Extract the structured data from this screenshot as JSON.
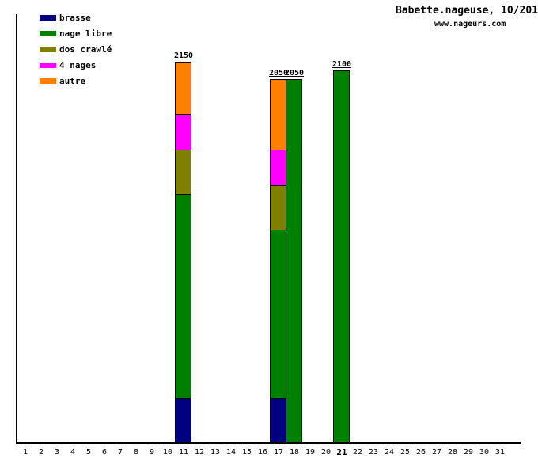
{
  "header": {
    "title": "Babette.nageuse, 10/201",
    "site": "www.nageurs.com"
  },
  "legend": {
    "position": "top-left",
    "items": [
      {
        "label": "brasse",
        "color": "#000080"
      },
      {
        "label": "nage libre",
        "color": "#008000"
      },
      {
        "label": "dos crawlé",
        "color": "#808000"
      },
      {
        "label": "4 nages",
        "color": "#ff00ff"
      },
      {
        "label": "autre",
        "color": "#ff8000"
      }
    ]
  },
  "chart_data": {
    "type": "bar",
    "stacked": true,
    "title": "Babette.nageuse, 10/201",
    "xlabel": "",
    "ylabel": "",
    "grid": false,
    "ylim": [
      0,
      2400
    ],
    "x_ticks": [
      1,
      2,
      3,
      4,
      5,
      6,
      7,
      8,
      9,
      10,
      11,
      12,
      13,
      14,
      15,
      16,
      17,
      18,
      19,
      20,
      21,
      22,
      23,
      24,
      25,
      26,
      27,
      28,
      29,
      30,
      31
    ],
    "highlighted_tick": 21,
    "stack_order_bottom_to_top": [
      "brasse",
      "nage libre",
      "dos crawlé",
      "4 nages",
      "autre"
    ],
    "bars": [
      {
        "day": 11,
        "total": 2150,
        "total_label": "2150",
        "segments": [
          {
            "name": "brasse",
            "value": 250
          },
          {
            "name": "nage libre",
            "value": 1150
          },
          {
            "name": "dos crawlé",
            "value": 250
          },
          {
            "name": "4 nages",
            "value": 200
          },
          {
            "name": "autre",
            "value": 300
          }
        ]
      },
      {
        "day": 17,
        "total": 2050,
        "total_label": "2050",
        "segments": [
          {
            "name": "brasse",
            "value": 250
          },
          {
            "name": "nage libre",
            "value": 950
          },
          {
            "name": "dos crawlé",
            "value": 250
          },
          {
            "name": "4 nages",
            "value": 200
          },
          {
            "name": "autre",
            "value": 400
          }
        ]
      },
      {
        "day": 18,
        "total": 2050,
        "total_label": "2050",
        "segments": [
          {
            "name": "nage libre",
            "value": 2050
          }
        ]
      },
      {
        "day": 21,
        "total": 2100,
        "total_label": "2100",
        "segments": [
          {
            "name": "nage libre",
            "value": 2100
          }
        ]
      }
    ]
  }
}
